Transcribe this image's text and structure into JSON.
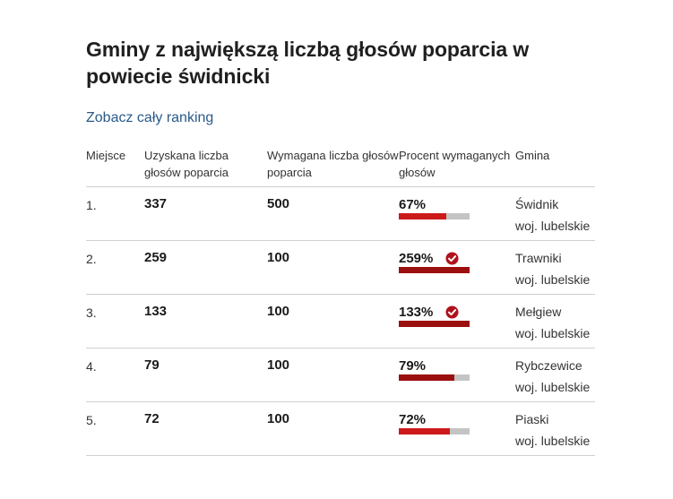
{
  "title": "Gminy z największą liczbą głosów poparcia w powiecie świdnicki",
  "ranking_link": "Zobacz cały ranking",
  "columns": {
    "place": "Miejsce",
    "obtained": "Uzyskana liczba głosów poparcia",
    "required": "Wymagana liczba głosów poparcia",
    "percent": "Procent wymaganych głosów",
    "gmina": "Gmina"
  },
  "colors": {
    "bar_partial": "#cc1a1a",
    "bar_full": "#9c0f0f",
    "bar_bg": "#c4c4c4",
    "check": "#b0121b"
  },
  "rows": [
    {
      "place": "1.",
      "obtained": "337",
      "required": "500",
      "percent_label": "67%",
      "percent_value": 67,
      "met": false,
      "gmina": "Świdnik",
      "woj": "woj. lubelskie"
    },
    {
      "place": "2.",
      "obtained": "259",
      "required": "100",
      "percent_label": "259%",
      "percent_value": 259,
      "met": true,
      "gmina": "Trawniki",
      "woj": "woj. lubelskie"
    },
    {
      "place": "3.",
      "obtained": "133",
      "required": "100",
      "percent_label": "133%",
      "percent_value": 133,
      "met": true,
      "gmina": "Mełgiew",
      "woj": "woj. lubelskie"
    },
    {
      "place": "4.",
      "obtained": "79",
      "required": "100",
      "percent_label": "79%",
      "percent_value": 79,
      "met": false,
      "gmina": "Rybczewice",
      "woj": "woj. lubelskie"
    },
    {
      "place": "5.",
      "obtained": "72",
      "required": "100",
      "percent_label": "72%",
      "percent_value": 72,
      "met": false,
      "gmina": "Piaski",
      "woj": "woj. lubelskie"
    }
  ]
}
